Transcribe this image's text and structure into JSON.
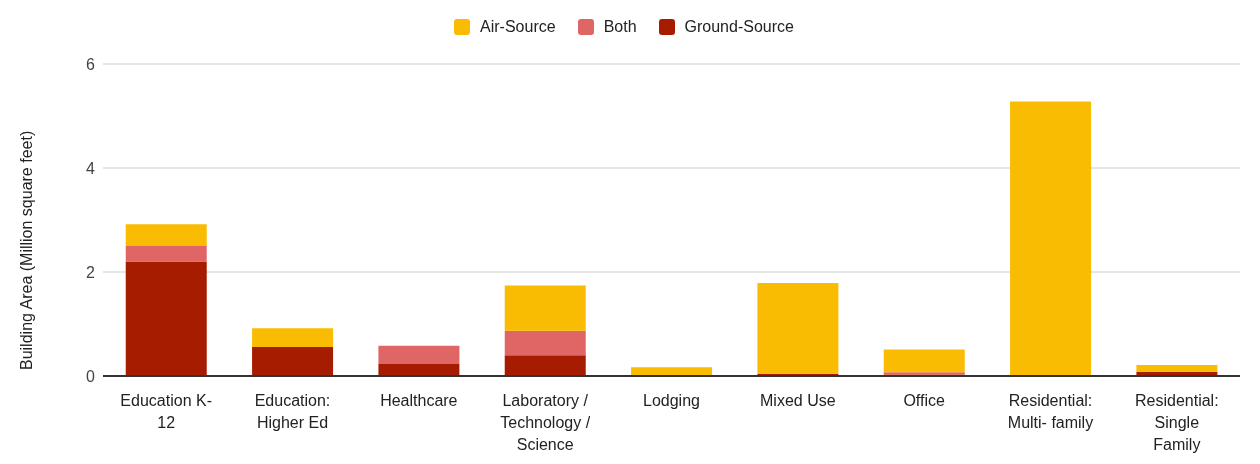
{
  "chart_data": {
    "type": "bar",
    "stacked": true,
    "ylabel": "Building Area (Million square feet)",
    "categories": [
      "Education K-12",
      "Education: Higher Ed",
      "Healthcare",
      "Laboratory / Technology / Science",
      "Lodging",
      "Mixed Use",
      "Office",
      "Residential: Multi- family",
      "Residential: Single Family"
    ],
    "series": [
      {
        "name": "Ground-Source",
        "color": "#a61c00",
        "values": [
          2.2,
          0.56,
          0.23,
          0.4,
          0,
          0.04,
          0.03,
          0,
          0.08
        ]
      },
      {
        "name": "Both",
        "color": "#e06666",
        "values": [
          0.3,
          0,
          0.35,
          0.47,
          0,
          0,
          0.04,
          0,
          0
        ]
      },
      {
        "name": "Air-Source",
        "color": "#f9bc02",
        "values": [
          0.42,
          0.36,
          0,
          0.87,
          0.17,
          1.75,
          0.44,
          5.28,
          0.13
        ]
      }
    ],
    "ylim": [
      0,
      6
    ],
    "yticks": [
      0,
      2,
      4,
      6
    ],
    "grid": "y",
    "legend": "top"
  }
}
